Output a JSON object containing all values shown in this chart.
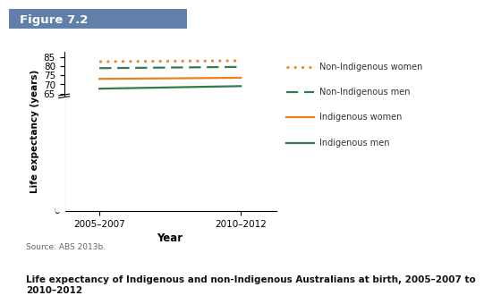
{
  "x_values": [
    0,
    1
  ],
  "x_labels": [
    "2005–2007",
    "2010–2012"
  ],
  "series": {
    "non_indigenous_women": [
      82.6,
      83.1
    ],
    "non_indigenous_men": [
      79.0,
      79.7
    ],
    "indigenous_women": [
      73.1,
      73.7
    ],
    "indigenous_men": [
      67.7,
      69.1
    ]
  },
  "colors": {
    "non_indigenous_women": "#E8821A",
    "non_indigenous_men": "#2E7D4F",
    "indigenous_women": "#E8821A",
    "indigenous_men": "#2E7D4F"
  },
  "legend_labels": [
    "Non-Indigenous women",
    "Non-Indigenous men",
    "Indigenous women",
    "Indigenous men"
  ],
  "legend_linestyles": [
    "dotted",
    "dashed",
    "solid",
    "solid"
  ],
  "legend_colors": [
    "#E8821A",
    "#2E7D4F",
    "#E8821A",
    "#2E7D4F"
  ],
  "ylabel": "Life expectancy (years)",
  "xlabel": "Year",
  "yticks": [
    0,
    65,
    70,
    75,
    80,
    85
  ],
  "ylim": [
    0,
    88
  ],
  "title": "Figure 7.2",
  "source": "Source: ABS 2013b.",
  "caption": "Life expectancy of Indigenous and non-Indigenous Australians at birth, 2005–2007 to\n2010–2012",
  "header_bg": "#6080aa",
  "figure_bg": "#ffffff",
  "linewidth": 1.6
}
